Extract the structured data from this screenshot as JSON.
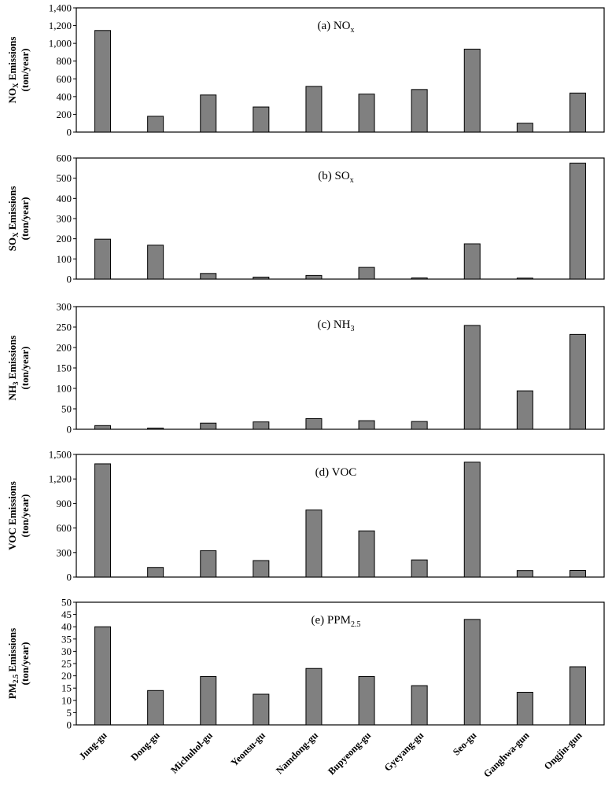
{
  "chart_data": {
    "type": "bar",
    "categories": [
      "Jung-gu",
      "Dong-gu",
      "Michuhol-gu",
      "Yeonsu-gu",
      "Namdong-gu",
      "Bupyeong-gu",
      "Gyeyang-gu",
      "Seo-gu",
      "Ganghwa-gun",
      "Ongjin-gun"
    ],
    "bar_color": "#808080",
    "panels": [
      {
        "title_main": "(a) NO",
        "title_sub": "x",
        "ylabel_line1_main": "NO",
        "ylabel_line1_sub": "X",
        "ylabel_line1_rest": " Emissions",
        "ylabel_line2": "(ton/year)",
        "ylim": [
          0,
          1400
        ],
        "yticks": [
          0,
          200,
          400,
          600,
          800,
          1000,
          1200,
          1400
        ],
        "ytick_labels": [
          "0",
          "200",
          "400",
          "600",
          "800",
          "1,000",
          "1,200",
          "1,400"
        ],
        "values": [
          1145,
          178,
          418,
          283,
          515,
          428,
          480,
          935,
          100,
          440
        ]
      },
      {
        "title_main": "(b) SO",
        "title_sub": "x",
        "ylabel_line1_main": "SO",
        "ylabel_line1_sub": "X",
        "ylabel_line1_rest": " Emissions",
        "ylabel_line2": "(ton/year)",
        "ylim": [
          0,
          600
        ],
        "yticks": [
          0,
          100,
          200,
          300,
          400,
          500,
          600
        ],
        "ytick_labels": [
          "0",
          "100",
          "200",
          "300",
          "400",
          "500",
          "600"
        ],
        "values": [
          198,
          168,
          28,
          10,
          18,
          58,
          6,
          175,
          5,
          575
        ]
      },
      {
        "title_main": "(c) NH",
        "title_sub": "3",
        "ylabel_line1_main": "NH",
        "ylabel_line1_sub": "3",
        "ylabel_line1_rest": " Emissions",
        "ylabel_line2": "(ton/year)",
        "ylim": [
          0,
          300
        ],
        "yticks": [
          0,
          50,
          100,
          150,
          200,
          250,
          300
        ],
        "ytick_labels": [
          "0",
          "50",
          "100",
          "150",
          "200",
          "250",
          "300"
        ],
        "values": [
          9,
          3,
          15,
          18,
          26,
          21,
          19,
          254,
          94,
          232
        ]
      },
      {
        "title_main": "(d) VOC",
        "title_sub": "",
        "ylabel_line1_main": "VOC Emissions",
        "ylabel_line1_sub": "",
        "ylabel_line1_rest": "",
        "ylabel_line2": "(ton/year)",
        "ylim": [
          0,
          1500
        ],
        "yticks": [
          0,
          300,
          600,
          900,
          1200,
          1500
        ],
        "ytick_labels": [
          "0",
          "300",
          "600",
          "900",
          "1,200",
          "1,500"
        ],
        "values": [
          1385,
          118,
          322,
          202,
          820,
          565,
          210,
          1405,
          80,
          82
        ]
      },
      {
        "title_main": "(e) PPM",
        "title_sub": "2.5",
        "ylabel_line1_main": "PM",
        "ylabel_line1_sub": "2.5",
        "ylabel_line1_rest": " Emissions",
        "ylabel_line2": "(ton/year)",
        "ylim": [
          0,
          50
        ],
        "yticks": [
          0,
          5,
          10,
          15,
          20,
          25,
          30,
          35,
          40,
          45,
          50
        ],
        "ytick_labels": [
          "0",
          "5",
          "10",
          "15",
          "20",
          "25",
          "30",
          "35",
          "40",
          "45",
          "50"
        ],
        "values": [
          40,
          14,
          19.7,
          12.5,
          23,
          19.7,
          16,
          43,
          13.3,
          23.7
        ]
      }
    ]
  }
}
